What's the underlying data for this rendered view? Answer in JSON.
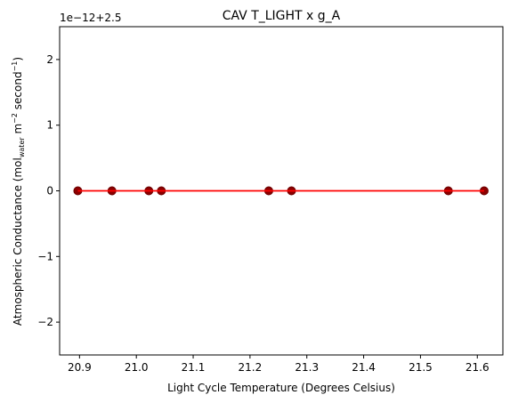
{
  "chart_data": {
    "type": "scatter",
    "title": "CAV T_LIGHT x g_A",
    "xlabel": "Light Cycle Temperature (Degrees Celsius)",
    "ylabel": {
      "prefix": "Atmospheric Conductance (mol",
      "sub": "water",
      "mid": " m",
      "sup1": "−2",
      "mid2": " second",
      "sup2": "−1",
      "suffix": ")"
    },
    "y_offset_label": "1e−12+2.5",
    "xlim": [
      20.865,
      21.645
    ],
    "ylim": [
      -2.5,
      2.5
    ],
    "x_ticks": [
      20.9,
      21.0,
      21.1,
      21.2,
      21.3,
      21.4,
      21.5,
      21.6
    ],
    "x_tick_labels": [
      "20.9",
      "21.0",
      "21.1",
      "21.2",
      "21.3",
      "21.4",
      "21.5",
      "21.6"
    ],
    "y_ticks": [
      -2,
      -1,
      0,
      1,
      2
    ],
    "y_tick_labels": [
      "−2",
      "−1",
      "0",
      "1",
      "2"
    ],
    "grid": false,
    "series": [
      {
        "kind": "scatter",
        "x": [
          20.897,
          20.957,
          21.022,
          21.044,
          21.233,
          21.273,
          21.549,
          21.612
        ],
        "y": [
          0,
          0,
          0,
          0,
          0,
          0,
          0,
          0
        ],
        "color": "#8b0000",
        "edge_color": "#6b0000"
      },
      {
        "kind": "fit-line",
        "x": [
          20.897,
          21.612
        ],
        "y": [
          0,
          0
        ],
        "color": "#ff0000"
      }
    ]
  }
}
